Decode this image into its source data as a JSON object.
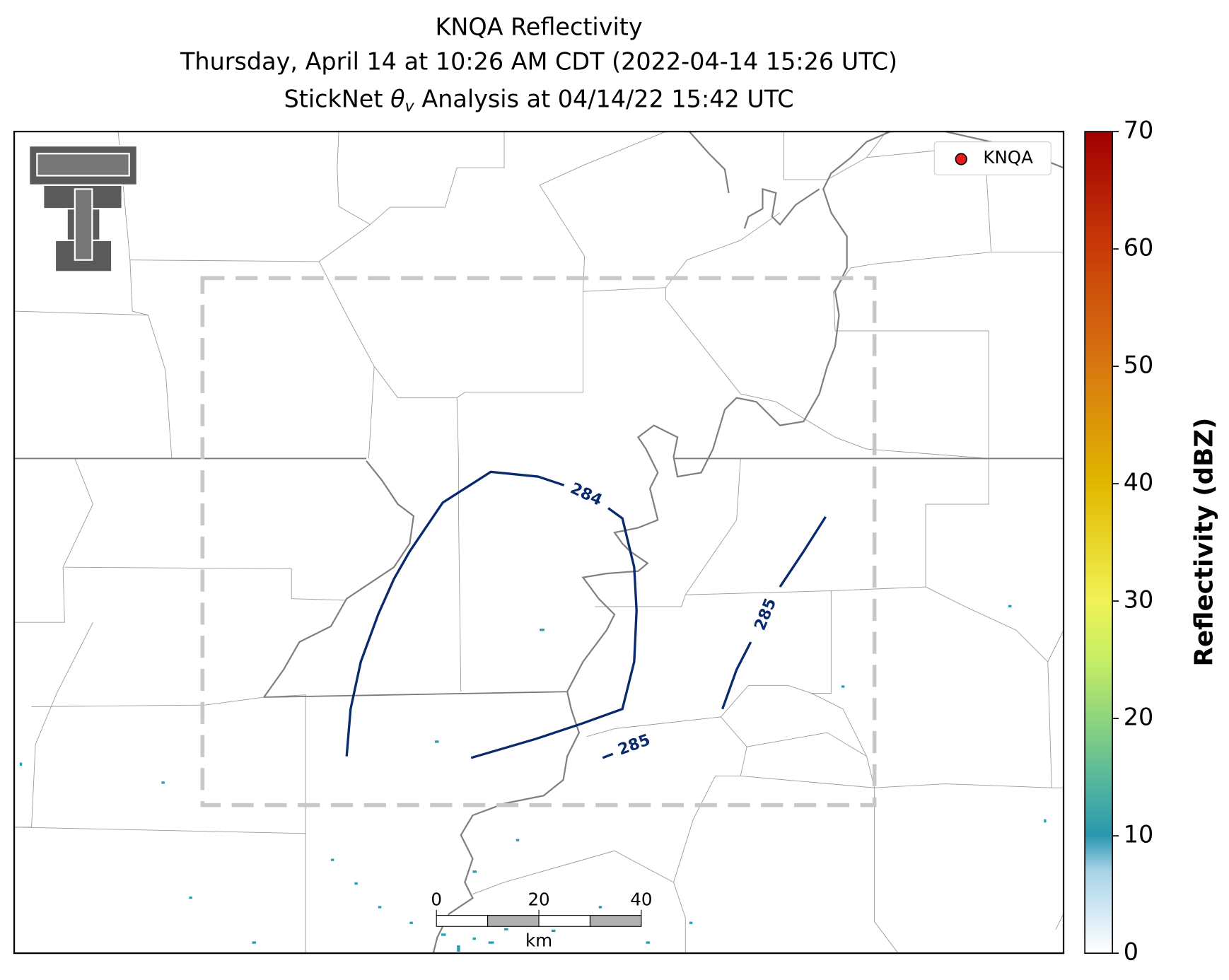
{
  "title": {
    "line1": "KNQA Reflectivity",
    "line2": "Thursday, April 14 at 10:26 AM CDT (2022-04-14 15:26 UTC)",
    "line3": {
      "before": "StickNet ",
      "symbol": "θ",
      "subscript": "v",
      "after": " Analysis at 04/14/22 15:42 UTC"
    }
  },
  "legend": {
    "label": "KNQA",
    "color": "#e41a1c"
  },
  "colorbar": {
    "label": "Reflectivity (dBZ)",
    "range": [
      0,
      70
    ],
    "ticks": [
      0,
      10,
      20,
      30,
      40,
      50,
      60,
      70
    ]
  },
  "contours": [
    {
      "value": 284
    },
    {
      "value": 285
    },
    {
      "value": 285
    }
  ],
  "scale_bar": {
    "range": [
      0,
      40
    ],
    "ticks": [
      0,
      20,
      40
    ],
    "unit": "km"
  }
}
